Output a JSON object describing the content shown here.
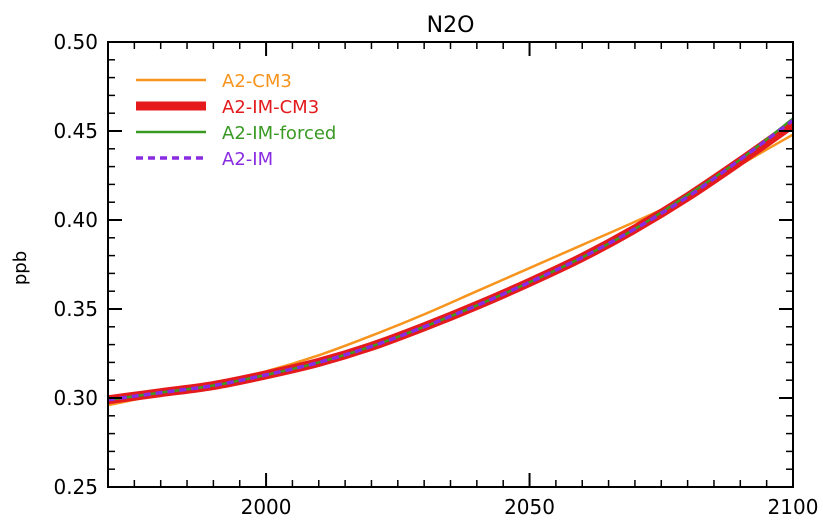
{
  "chart_data": {
    "type": "line",
    "title": "N2O",
    "xlabel": "",
    "ylabel": "ppb",
    "xlim": [
      1970,
      2100
    ],
    "ylim": [
      0.25,
      0.5
    ],
    "xticks": [
      2000,
      2050,
      2100
    ],
    "xtick_labels": [
      "2000",
      "2050",
      "2100"
    ],
    "yticks": [
      0.25,
      0.3,
      0.35,
      0.4,
      0.45,
      0.5
    ],
    "ytick_labels": [
      "0.25",
      "0.30",
      "0.35",
      "0.40",
      "0.45",
      "0.50"
    ],
    "grid": false,
    "legend_position": "top-left",
    "x": [
      1970,
      1980,
      1990,
      2000,
      2010,
      2020,
      2030,
      2040,
      2050,
      2060,
      2070,
      2080,
      2090,
      2100
    ],
    "series": [
      {
        "name": "A2-CM3",
        "color": "#f7941d",
        "style": "solid",
        "width": "thin",
        "values": [
          0.296,
          0.302,
          0.308,
          0.315,
          0.324,
          0.335,
          0.347,
          0.36,
          0.373,
          0.386,
          0.399,
          0.413,
          0.431,
          0.448
        ]
      },
      {
        "name": "A2-IM-CM3",
        "color": "#e41a1c",
        "style": "solid",
        "width": "thick",
        "values": [
          0.299,
          0.303,
          0.307,
          0.313,
          0.32,
          0.329,
          0.34,
          0.352,
          0.365,
          0.379,
          0.395,
          0.413,
          0.433,
          0.454
        ]
      },
      {
        "name": "A2-IM-forced",
        "color": "#3a9a24",
        "style": "solid",
        "width": "thin",
        "values": [
          0.299,
          0.303,
          0.307,
          0.313,
          0.32,
          0.329,
          0.34,
          0.352,
          0.365,
          0.379,
          0.395,
          0.414,
          0.434,
          0.457
        ]
      },
      {
        "name": "A2-IM",
        "color": "#8a2be2",
        "style": "dashed",
        "width": "medium",
        "values": [
          0.299,
          0.303,
          0.307,
          0.313,
          0.32,
          0.329,
          0.34,
          0.352,
          0.365,
          0.379,
          0.395,
          0.413,
          0.434,
          0.456
        ]
      }
    ]
  }
}
